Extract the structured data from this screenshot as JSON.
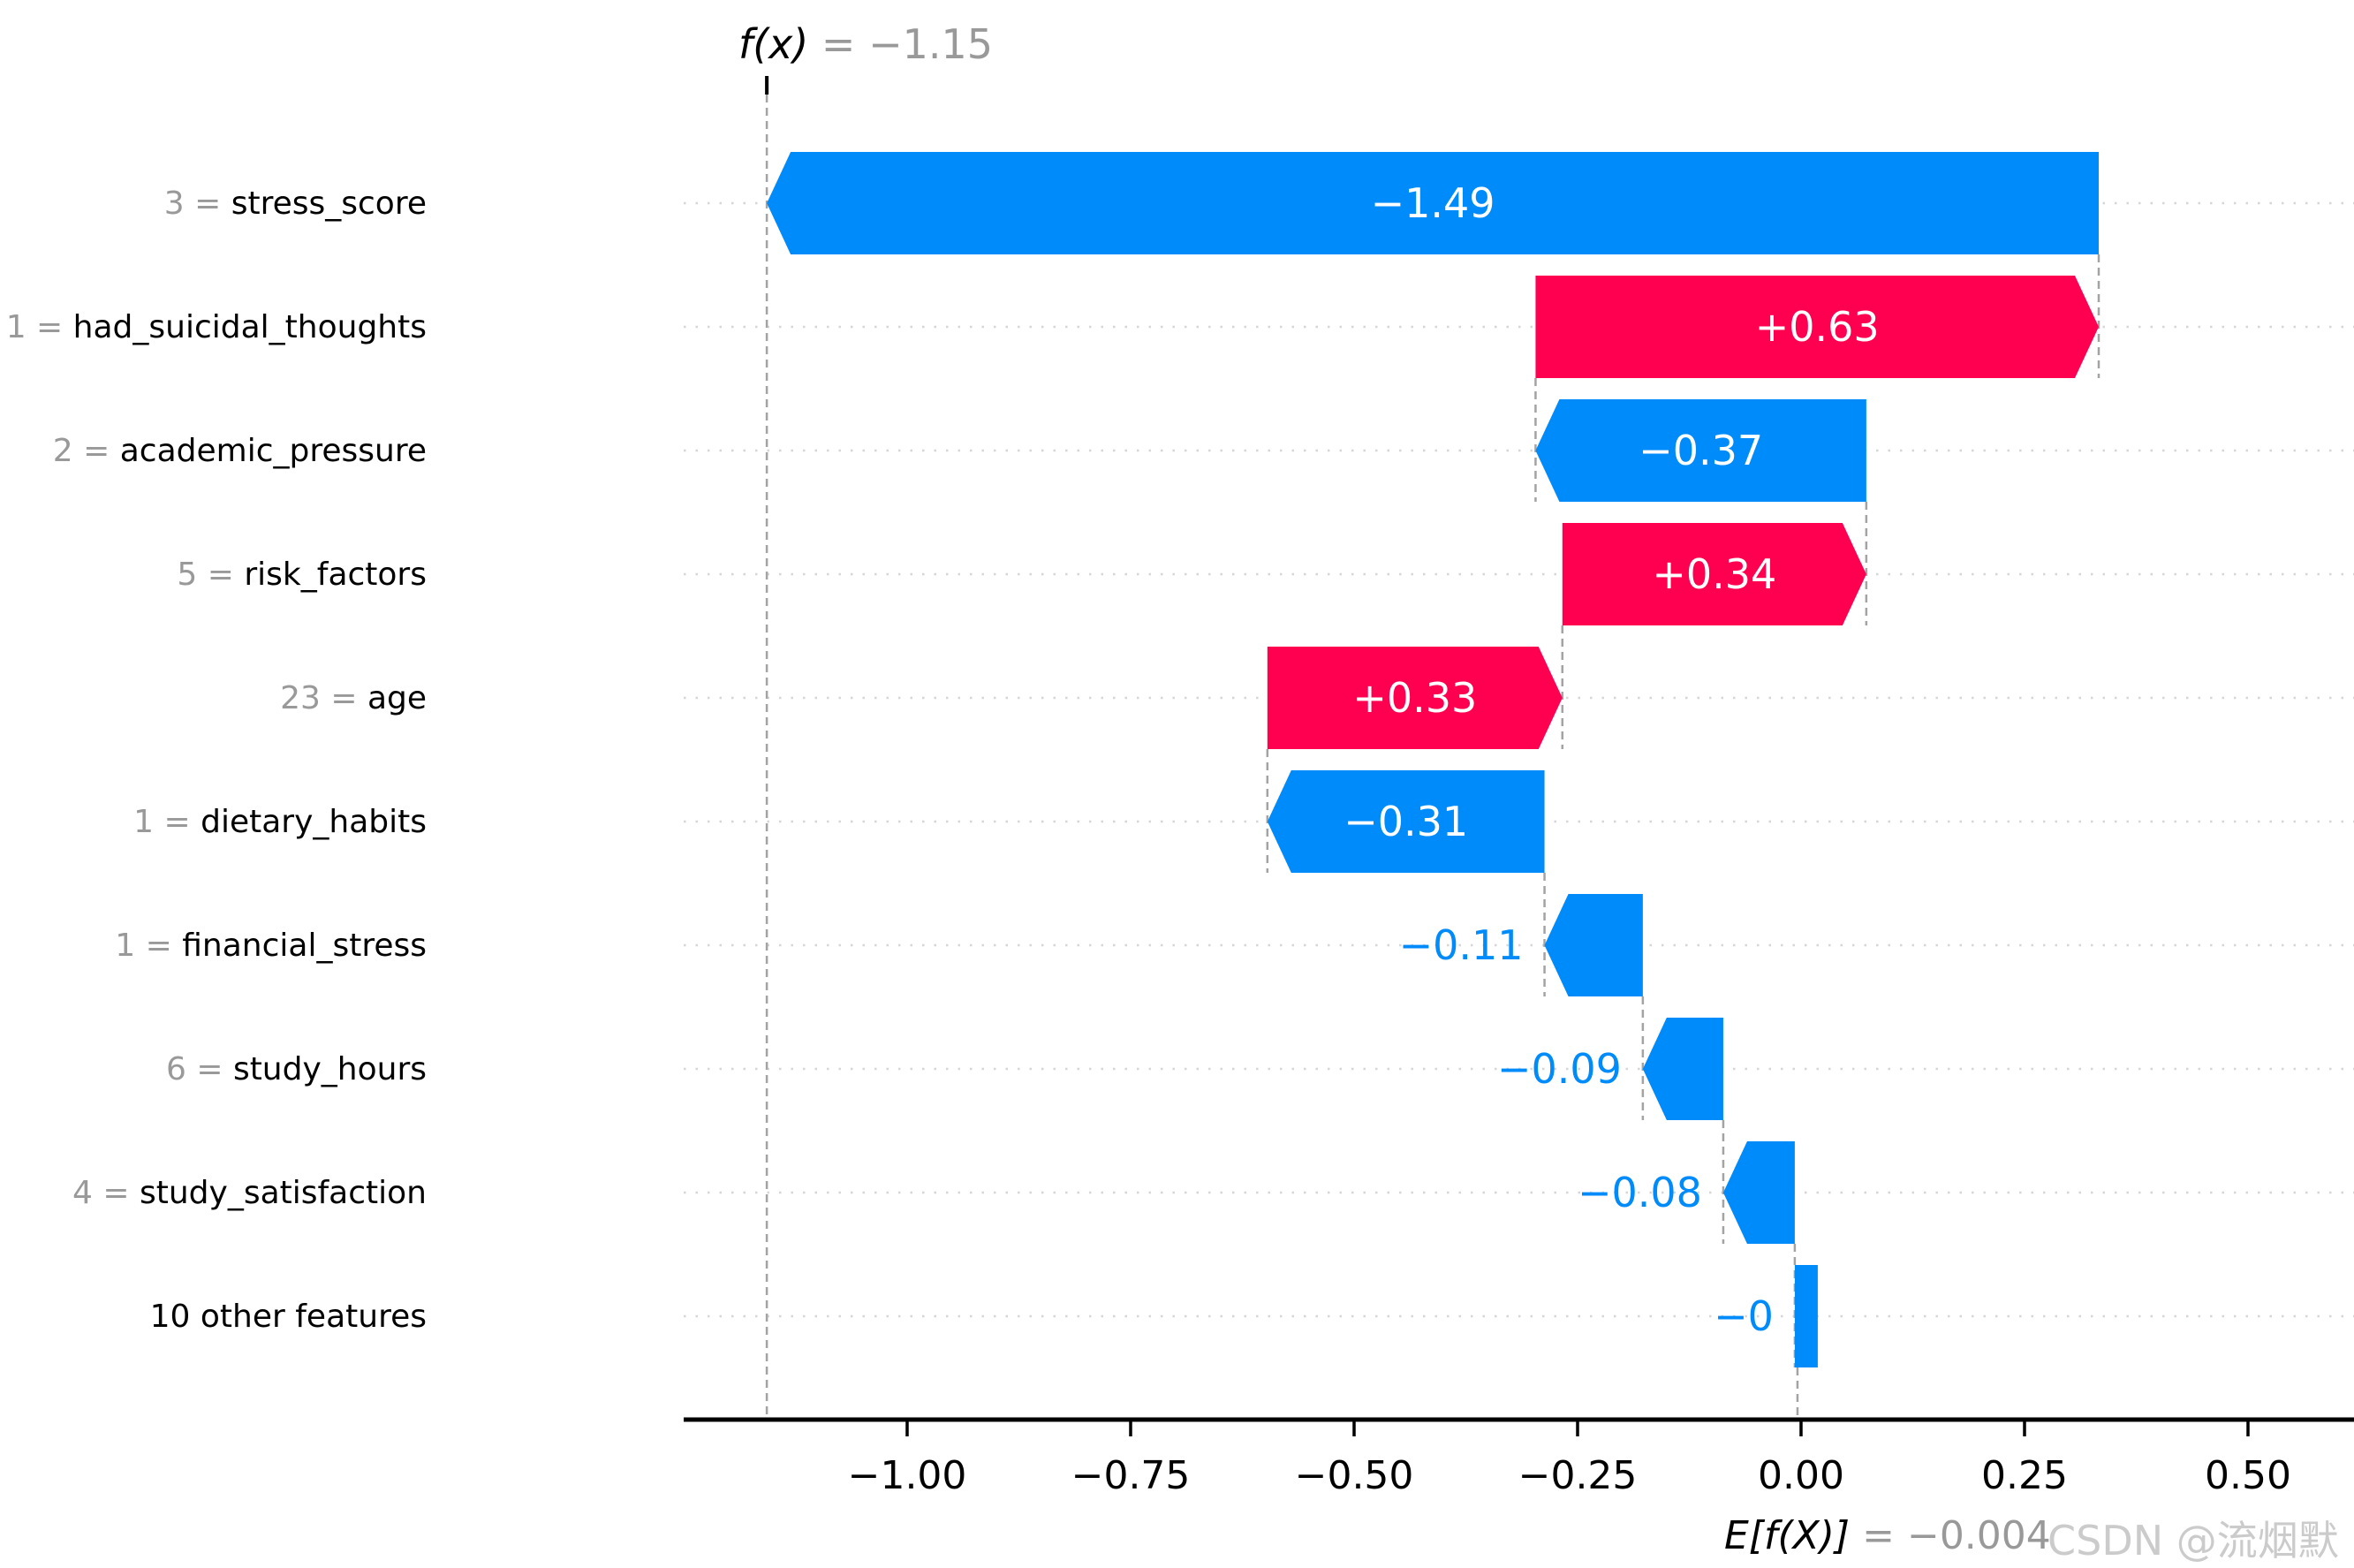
{
  "chart_data": {
    "type": "bar",
    "subtype": "shap-waterfall",
    "fx_annotation": {
      "prefix": "f(x)",
      "rest": " = −1.15",
      "value": -1.15
    },
    "expected_annotation": {
      "prefix": "E[f(X)]",
      "rest": " = −0.004",
      "value": -0.004
    },
    "base_value": -0.004,
    "features": [
      {
        "value_label": "3",
        "name": "stress_score",
        "shap": -1.49,
        "display": "−1.49",
        "label_placement": "inside"
      },
      {
        "value_label": "1",
        "name": "had_suicidal_thoughts",
        "shap": 0.63,
        "display": "+0.63",
        "label_placement": "inside"
      },
      {
        "value_label": "2",
        "name": "academic_pressure",
        "shap": -0.37,
        "display": "−0.37",
        "label_placement": "inside"
      },
      {
        "value_label": "5",
        "name": "risk_factors",
        "shap": 0.34,
        "display": "+0.34",
        "label_placement": "inside"
      },
      {
        "value_label": "23",
        "name": "age",
        "shap": 0.33,
        "display": "+0.33",
        "label_placement": "inside"
      },
      {
        "value_label": "1",
        "name": "dietary_habits",
        "shap": -0.31,
        "display": "−0.31",
        "label_placement": "inside"
      },
      {
        "value_label": "1",
        "name": "financial_stress",
        "shap": -0.11,
        "display": "−0.11",
        "label_placement": "outside"
      },
      {
        "value_label": "6",
        "name": "study_hours",
        "shap": -0.09,
        "display": "−0.09",
        "label_placement": "outside"
      },
      {
        "value_label": "4",
        "name": "study_satisfaction",
        "shap": -0.08,
        "display": "−0.08",
        "label_placement": "outside"
      },
      {
        "value_label": null,
        "name": "10 other features",
        "shap": -0.003,
        "display": "−0",
        "label_placement": "outside"
      }
    ],
    "xticks": [
      {
        "v": -1.0,
        "label": "−1.00"
      },
      {
        "v": -0.75,
        "label": "−0.75"
      },
      {
        "v": -0.5,
        "label": "−0.50"
      },
      {
        "v": -0.25,
        "label": "−0.25"
      },
      {
        "v": 0.0,
        "label": "0.00"
      },
      {
        "v": 0.25,
        "label": "0.25"
      },
      {
        "v": 0.5,
        "label": "0.50"
      }
    ],
    "xlim": [
      -1.25,
      0.62
    ],
    "grid": "horizontal-dotted",
    "colors": {
      "positive": "#ff0051",
      "negative": "#008bfb",
      "value_text_gray": "#999999",
      "feature_text": "#000000",
      "connector": "#a3a3a3",
      "gridline": "#d6d6d6",
      "axis": "#000000"
    }
  },
  "watermark": "CSDN @流烟默"
}
